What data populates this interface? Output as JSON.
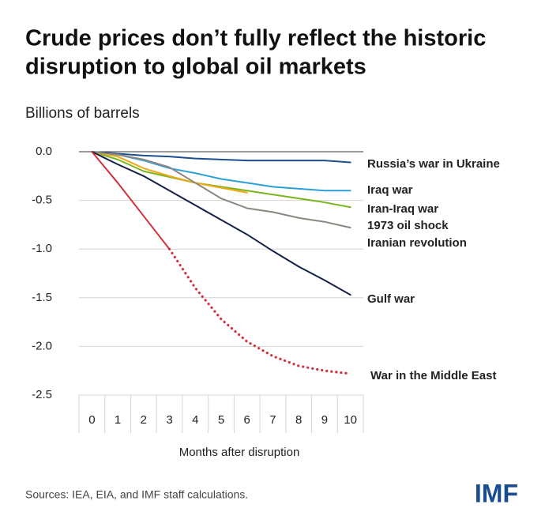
{
  "chart_data": {
    "type": "line",
    "title": [
      "Crude prices don’t fully reflect the historic",
      "disruption to global oil markets"
    ],
    "ylabel": "Billions of barrels",
    "xlabel": "Months after disruption",
    "source": "Sources: IEA, EIA, and IMF staff calculations.",
    "logo": "IMF",
    "xlim": [
      -0.5,
      10.5
    ],
    "xticks": [
      0,
      1,
      2,
      3,
      4,
      5,
      6,
      7,
      8,
      9,
      10
    ],
    "ylim": [
      -2.5,
      0
    ],
    "yticks": [
      {
        "value": 0,
        "label": "0.0"
      },
      -0.5,
      {
        "value": -1,
        "label": "-1.0"
      },
      -1.5,
      {
        "value": -2,
        "label": "-2.0"
      },
      -2.5
    ],
    "grid": true,
    "series": [
      {
        "name": "Russia’s war in Ukraine",
        "color": "#1f4e8c",
        "x": [
          0,
          1,
          2,
          3,
          4,
          5,
          6,
          7,
          8,
          9,
          10
        ],
        "values": [
          0,
          -0.02,
          -0.04,
          -0.05,
          -0.07,
          -0.08,
          -0.09,
          -0.09,
          -0.09,
          -0.09,
          -0.11
        ]
      },
      {
        "name": "Iraq war",
        "color": "#2aa0d8",
        "x": [
          0,
          1,
          2,
          3,
          4,
          5,
          6,
          7,
          8,
          9,
          10
        ],
        "values": [
          0,
          -0.03,
          -0.09,
          -0.17,
          -0.22,
          -0.28,
          -0.32,
          -0.36,
          -0.38,
          -0.4,
          -0.4
        ]
      },
      {
        "name": "Iran-Iraq war",
        "color": "#7ab51d",
        "x": [
          0,
          1,
          2,
          3,
          4,
          5,
          6,
          7,
          8,
          9,
          10
        ],
        "values": [
          0,
          -0.08,
          -0.2,
          -0.26,
          -0.32,
          -0.36,
          -0.4,
          -0.44,
          -0.48,
          -0.52,
          -0.57
        ]
      },
      {
        "name": "1973 oil shock",
        "color": "#f0a818",
        "x": [
          0,
          1,
          2,
          3,
          4,
          5,
          6
        ],
        "values": [
          0,
          -0.05,
          -0.17,
          -0.25,
          -0.32,
          -0.37,
          -0.42
        ]
      },
      {
        "name": "Iranian revolution",
        "color": "#8c867f",
        "x": [
          0,
          1,
          2,
          3,
          4,
          5,
          6,
          7,
          8,
          9,
          10
        ],
        "values": [
          0,
          -0.03,
          -0.08,
          -0.16,
          -0.32,
          -0.48,
          -0.58,
          -0.62,
          -0.68,
          -0.72,
          -0.78
        ]
      },
      {
        "name": "Gulf war",
        "color": "#13204a",
        "x": [
          0,
          1,
          2,
          3,
          4,
          5,
          6,
          7,
          8,
          9,
          10
        ],
        "values": [
          0,
          -0.13,
          -0.25,
          -0.4,
          -0.55,
          -0.7,
          -0.85,
          -1.02,
          -1.18,
          -1.32,
          -1.47
        ]
      },
      {
        "name": "War in the Middle East",
        "color": "#d0313d",
        "dotted_from_x": 3,
        "x": [
          0,
          1,
          2,
          3,
          4,
          5,
          6,
          7,
          8,
          9,
          10
        ],
        "values": [
          0,
          -0.32,
          -0.66,
          -1.0,
          -1.4,
          -1.72,
          -1.95,
          -2.1,
          -2.2,
          -2.25,
          -2.28
        ]
      }
    ]
  }
}
